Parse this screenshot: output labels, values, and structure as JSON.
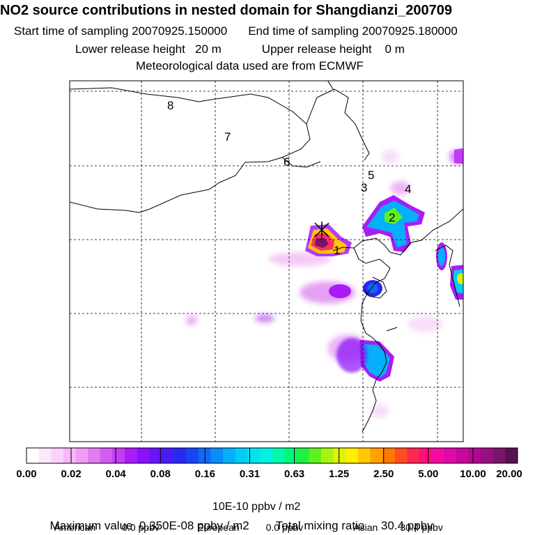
{
  "header": {
    "title": "NO2 source contributions in nested domain for Shangdianzi_200709",
    "start_label": "Start time of sampling 20070925.150000",
    "end_label": "End time of sampling 20070925.180000",
    "lower_label": "Lower release height   20 m",
    "upper_label": "Upper release height    0 m",
    "met_label": "Meteorological data used are from ECMWF"
  },
  "map": {
    "site_numbers": [
      "1",
      "2",
      "3",
      "4",
      "5",
      "6",
      "7",
      "8"
    ],
    "receptor_marker": "cross-icon",
    "grid": "dashed"
  },
  "chart_data": {
    "type": "heatmap",
    "title": "NO2 source contributions in nested domain for Shangdianzi_200709",
    "colorbar": {
      "tick_labels": [
        "0.00",
        "0.02",
        "0.04",
        "0.08",
        "0.16",
        "0.31",
        "0.63",
        "1.25",
        "2.50",
        "5.00",
        "10.00",
        "20.00"
      ],
      "unit": "10E-10 ppbv / m2",
      "colors": [
        "#ffffff",
        "#fde8fd",
        "#fbd2fb",
        "#f7b8f7",
        "#f09cf3",
        "#e27cf0",
        "#d45cf0",
        "#c23cf5",
        "#a81cf8",
        "#8a10fa",
        "#6a14f8",
        "#4a1cf5",
        "#2a28f2",
        "#1844f4",
        "#1068f6",
        "#0a8cf8",
        "#04b0fa",
        "#00ccf6",
        "#00e2ee",
        "#00f2e0",
        "#00f8b0",
        "#00f87a",
        "#20f040",
        "#60f020",
        "#a8f410",
        "#dcf408",
        "#ffee00",
        "#ffc800",
        "#ffa000",
        "#ff7800",
        "#ff4c20",
        "#ff2850",
        "#ff1078",
        "#f40ca0",
        "#e008a8",
        "#c8089c",
        "#b00890",
        "#981080",
        "#7a1468",
        "#581050"
      ]
    },
    "maximum_value": "0.350E-08 ppbv / m2",
    "total_mixing_ratio": "30.4 ppbv",
    "contributions": [
      {
        "name": "American",
        "value": "0.0 ppbv"
      },
      {
        "name": "European",
        "value": "0.0 ppbv"
      },
      {
        "name": "Asian",
        "value": "30.4 ppbv"
      }
    ]
  },
  "footer": {
    "max_label": "Maximum value  0.350E-08 ppbv / m2",
    "total_label": "Total mixing ratio     30.4 ppbv",
    "american_label": "American",
    "american_value": "0.0 ppbv",
    "european_label": "European",
    "european_value": "0.0 ppbv",
    "asian_label": "Asian",
    "asian_value": "30.4 ppbv"
  }
}
